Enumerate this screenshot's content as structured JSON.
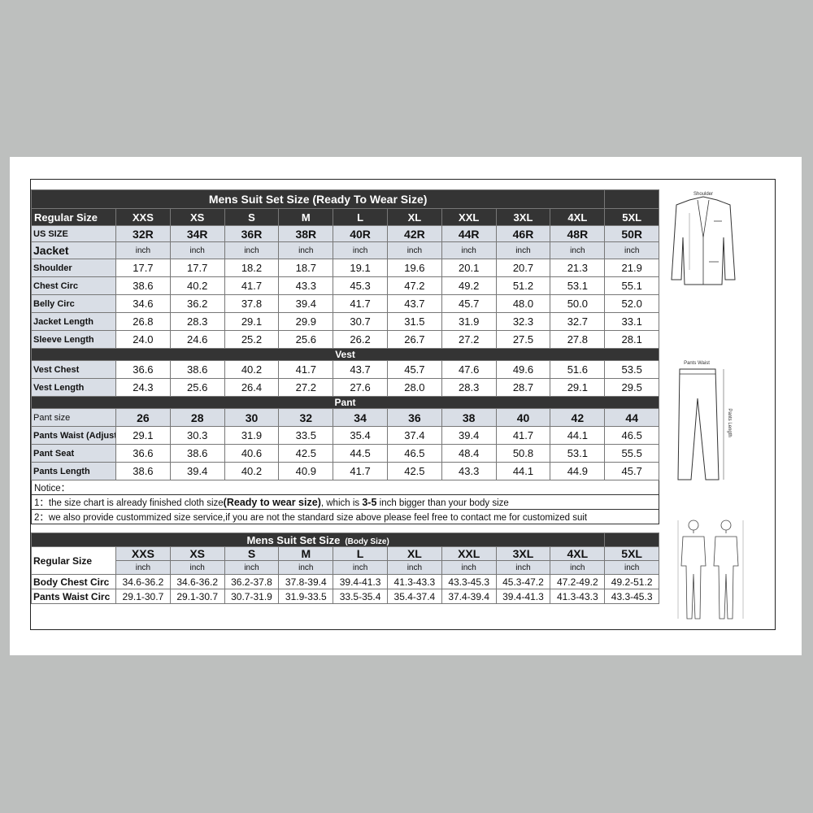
{
  "ready_to_wear": {
    "title": "Mens Suit Set Size (Ready To Wear Size)",
    "regular_size_label": "Regular Size",
    "sizes": [
      "XXS",
      "XS",
      "S",
      "M",
      "L",
      "XL",
      "XXL",
      "3XL",
      "4XL",
      "5XL"
    ],
    "us_size_label": "US SIZE",
    "us_sizes": [
      "32R",
      "34R",
      "36R",
      "38R",
      "40R",
      "42R",
      "44R",
      "46R",
      "48R",
      "50R"
    ],
    "jacket_label": "Jacket",
    "unit": "inch",
    "jacket_rows": [
      {
        "label": "Shoulder",
        "values": [
          "17.7",
          "17.7",
          "18.2",
          "18.7",
          "19.1",
          "19.6",
          "20.1",
          "20.7",
          "21.3",
          "21.9"
        ]
      },
      {
        "label": "Chest Circ",
        "values": [
          "38.6",
          "40.2",
          "41.7",
          "43.3",
          "45.3",
          "47.2",
          "49.2",
          "51.2",
          "53.1",
          "55.1"
        ]
      },
      {
        "label": "Belly Circ",
        "values": [
          "34.6",
          "36.2",
          "37.8",
          "39.4",
          "41.7",
          "43.7",
          "45.7",
          "48.0",
          "50.0",
          "52.0"
        ]
      },
      {
        "label": "Jacket Length",
        "values": [
          "26.8",
          "28.3",
          "29.1",
          "29.9",
          "30.7",
          "31.5",
          "31.9",
          "32.3",
          "32.7",
          "33.1"
        ]
      },
      {
        "label": "Sleeve Length",
        "values": [
          "24.0",
          "24.6",
          "25.2",
          "25.6",
          "26.2",
          "26.7",
          "27.2",
          "27.5",
          "27.8",
          "28.1"
        ]
      }
    ],
    "vest_label": "Vest",
    "vest_rows": [
      {
        "label": "Vest Chest",
        "values": [
          "36.6",
          "38.6",
          "40.2",
          "41.7",
          "43.7",
          "45.7",
          "47.6",
          "49.6",
          "51.6",
          "53.5"
        ]
      },
      {
        "label": "Vest Length",
        "values": [
          "24.3",
          "25.6",
          "26.4",
          "27.2",
          "27.6",
          "28.0",
          "28.3",
          "28.7",
          "29.1",
          "29.5"
        ]
      }
    ],
    "pant_label": "Pant",
    "pant_size_label": "Pant size",
    "pant_sizes": [
      "26",
      "28",
      "30",
      "32",
      "34",
      "36",
      "38",
      "40",
      "42",
      "44"
    ],
    "pant_rows": [
      {
        "label": "Pants Waist (Adjustab",
        "values": [
          "29.1",
          "30.3",
          "31.9",
          "33.5",
          "35.4",
          "37.4",
          "39.4",
          "41.7",
          "44.1",
          "46.5"
        ]
      },
      {
        "label": "Pant Seat",
        "values": [
          "36.6",
          "38.6",
          "40.6",
          "42.5",
          "44.5",
          "46.5",
          "48.4",
          "50.8",
          "53.1",
          "55.5"
        ]
      },
      {
        "label": "Pants Length",
        "values": [
          "38.6",
          "39.4",
          "40.2",
          "40.9",
          "41.7",
          "42.5",
          "43.3",
          "44.1",
          "44.9",
          "45.7"
        ]
      }
    ],
    "notice": {
      "title": "Notice：",
      "line1_a": "1：the size chart is already finished cloth size",
      "line1_b": "(Ready to wear size)",
      "line1_c": ", which is ",
      "line1_d": "3-5",
      "line1_e": " inch bigger than your body size",
      "line2": "2：we also provide custommized size service,if you are not the standard size above please feel free to contact me for customized suit"
    }
  },
  "body_size": {
    "title": "Mens Suit Set Size",
    "subtitle": "(Body Size)",
    "regular_size_label": "Regular Size",
    "sizes": [
      "XXS",
      "XS",
      "S",
      "M",
      "L",
      "XL",
      "XXL",
      "3XL",
      "4XL",
      "5XL"
    ],
    "unit": "inch",
    "rows": [
      {
        "label": "Body Chest Circ",
        "values": [
          "34.6-36.2",
          "34.6-36.2",
          "36.2-37.8",
          "37.8-39.4",
          "39.4-41.3",
          "41.3-43.3",
          "43.3-45.3",
          "45.3-47.2",
          "47.2-49.2",
          "49.2-51.2"
        ]
      },
      {
        "label": "Pants Waist Circ",
        "values": [
          "29.1-30.7",
          "29.1-30.7",
          "30.7-31.9",
          "31.9-33.5",
          "33.5-35.4",
          "35.4-37.4",
          "37.4-39.4",
          "39.4-41.3",
          "41.3-43.3",
          "43.3-45.3"
        ]
      }
    ]
  },
  "sketches": {
    "jacket_label": "Shoulder",
    "pants_label": "Pants Waist",
    "pants_length_label": "Pants Length"
  }
}
